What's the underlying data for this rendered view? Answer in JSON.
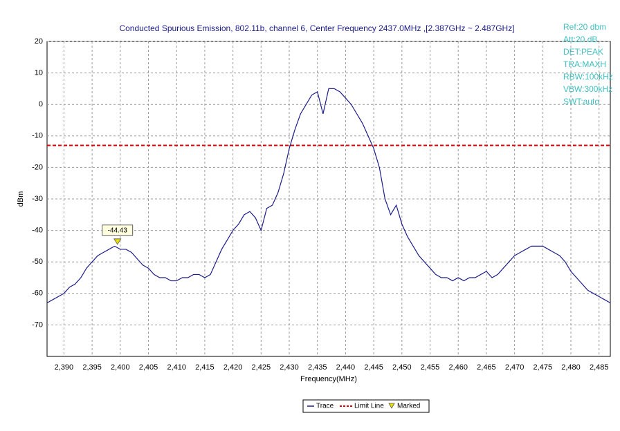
{
  "chart_data": {
    "type": "line",
    "title": "Conducted Spurious Emission, 802.11b, channel 6, Center Frequency 2437.0MHz ,[2.387GHz ~ 2.487GHz]",
    "xlabel": "Frequency(MHz)",
    "ylabel": "dBm",
    "annotations": [
      "Ref:20 dbm",
      "Att:20 dB",
      "DET:PEAK",
      "TRA:MAXH",
      "RBW:100kHz",
      "VBW:300kHz",
      "SWT:auto"
    ],
    "xlim": [
      2387,
      2487
    ],
    "ylim": [
      -80,
      20
    ],
    "xticks": [
      {
        "value": 2390,
        "label": "2,390"
      },
      {
        "value": 2395,
        "label": "2,395"
      },
      {
        "value": 2400,
        "label": "2,400"
      },
      {
        "value": 2405,
        "label": "2,405"
      },
      {
        "value": 2410,
        "label": "2,410"
      },
      {
        "value": 2415,
        "label": "2,415"
      },
      {
        "value": 2420,
        "label": "2,420"
      },
      {
        "value": 2425,
        "label": "2,425"
      },
      {
        "value": 2430,
        "label": "2,430"
      },
      {
        "value": 2435,
        "label": "2,435"
      },
      {
        "value": 2440,
        "label": "2,440"
      },
      {
        "value": 2445,
        "label": "2,445"
      },
      {
        "value": 2450,
        "label": "2,450"
      },
      {
        "value": 2455,
        "label": "2,455"
      },
      {
        "value": 2460,
        "label": "2,460"
      },
      {
        "value": 2465,
        "label": "2,465"
      },
      {
        "value": 2470,
        "label": "2,470"
      },
      {
        "value": 2475,
        "label": "2,475"
      },
      {
        "value": 2480,
        "label": "2,480"
      },
      {
        "value": 2485,
        "label": "2,485"
      }
    ],
    "yticks": [
      20,
      10,
      0,
      -10,
      -20,
      -30,
      -40,
      -50,
      -60,
      -70
    ],
    "grid": true,
    "x": [
      2387,
      2388,
      2389,
      2390,
      2391,
      2392,
      2393,
      2394,
      2395,
      2396,
      2397,
      2398,
      2399,
      2400,
      2401,
      2402,
      2403,
      2404,
      2405,
      2406,
      2407,
      2408,
      2409,
      2410,
      2411,
      2412,
      2413,
      2414,
      2415,
      2416,
      2417,
      2418,
      2419,
      2420,
      2421,
      2422,
      2423,
      2424,
      2425,
      2426,
      2427,
      2428,
      2429,
      2430,
      2431,
      2432,
      2433,
      2434,
      2435,
      2436,
      2437,
      2438,
      2439,
      2440,
      2441,
      2442,
      2443,
      2444,
      2445,
      2446,
      2447,
      2448,
      2449,
      2450,
      2451,
      2452,
      2453,
      2454,
      2455,
      2456,
      2457,
      2458,
      2459,
      2460,
      2461,
      2462,
      2463,
      2464,
      2465,
      2466,
      2467,
      2468,
      2469,
      2470,
      2471,
      2472,
      2473,
      2474,
      2475,
      2476,
      2477,
      2478,
      2479,
      2480,
      2481,
      2482,
      2483,
      2484,
      2485,
      2486,
      2487
    ],
    "series": [
      {
        "name": "Trace",
        "color": "#1c1c8a",
        "values": [
          -63,
          -62,
          -61,
          -60,
          -58,
          -57,
          -55,
          -52,
          -50,
          -48,
          -47,
          -46,
          -45,
          -46,
          -46,
          -47,
          -49,
          -51,
          -52,
          -54,
          -55,
          -55,
          -56,
          -56,
          -55,
          -55,
          -54,
          -54,
          -55,
          -54,
          -50,
          -46,
          -43,
          -40,
          -38,
          -35,
          -34,
          -36,
          -40,
          -33,
          -32,
          -28,
          -22,
          -14,
          -8,
          -3,
          0,
          3,
          4,
          -3,
          5,
          5,
          4,
          2,
          0,
          -3,
          -6,
          -10,
          -14,
          -20,
          -30,
          -35,
          -32,
          -38,
          -42,
          -45,
          -48,
          -50,
          -52,
          -54,
          -55,
          -55,
          -56,
          -55,
          -56,
          -55,
          -55,
          -54,
          -53,
          -55,
          -54,
          -52,
          -50,
          -48,
          -47,
          -46,
          -45,
          -45,
          -45,
          -46,
          -47,
          -48,
          -50,
          -53,
          -55,
          -57,
          -59,
          -60,
          -61,
          -62,
          -63
        ]
      }
    ],
    "limit_line": {
      "name": "Limit Line",
      "value": -13,
      "color": "#dd0000"
    },
    "marker": {
      "name": "Marked",
      "x": 2399.5,
      "value": -44.43,
      "color": "#e8e000"
    }
  }
}
